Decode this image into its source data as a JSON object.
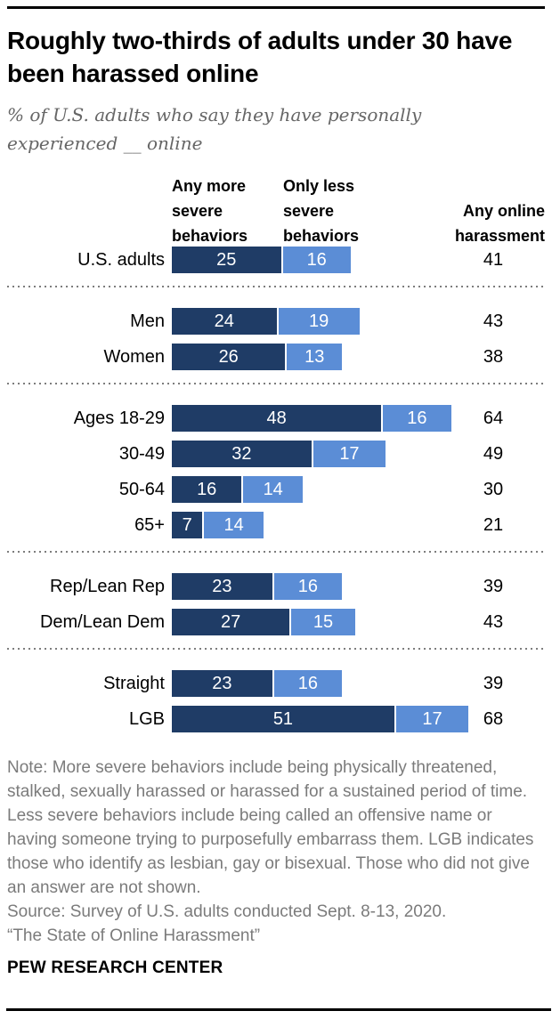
{
  "title": "Roughly two-thirds of adults under 30 have been harassed online",
  "subtitle": "% of U.S. adults who say they have personally experienced __ online",
  "chart_data": {
    "type": "bar",
    "orientation": "horizontal",
    "stacked": true,
    "unit": "percent",
    "xlim": [
      0,
      100
    ],
    "grid": false,
    "series_labels": [
      "Any more severe behaviors",
      "Only less severe behaviors"
    ],
    "total_label": "Any online harassment",
    "colors": {
      "more_severe": "#1F3C66",
      "less_severe": "#5B8DD6",
      "bar_text": "#ffffff"
    },
    "groups": [
      {
        "rows": [
          {
            "label": "U.S. adults",
            "more_severe": 25,
            "less_severe": 16,
            "total": 41
          }
        ]
      },
      {
        "rows": [
          {
            "label": "Men",
            "more_severe": 24,
            "less_severe": 19,
            "total": 43
          },
          {
            "label": "Women",
            "more_severe": 26,
            "less_severe": 13,
            "total": 38
          }
        ]
      },
      {
        "rows": [
          {
            "label": "Ages 18-29",
            "more_severe": 48,
            "less_severe": 16,
            "total": 64
          },
          {
            "label": "30-49",
            "more_severe": 32,
            "less_severe": 17,
            "total": 49
          },
          {
            "label": "50-64",
            "more_severe": 16,
            "less_severe": 14,
            "total": 30
          },
          {
            "label": "65+",
            "more_severe": 7,
            "less_severe": 14,
            "total": 21
          }
        ]
      },
      {
        "rows": [
          {
            "label": "Rep/Lean Rep",
            "more_severe": 23,
            "less_severe": 16,
            "total": 39
          },
          {
            "label": "Dem/Lean Dem",
            "more_severe": 27,
            "less_severe": 15,
            "total": 43
          }
        ]
      },
      {
        "rows": [
          {
            "label": "Straight",
            "more_severe": 23,
            "less_severe": 16,
            "total": 39
          },
          {
            "label": "LGB",
            "more_severe": 51,
            "less_severe": 17,
            "total": 68
          }
        ]
      }
    ]
  },
  "note": "Note: More severe behaviors include being physically threatened, stalked, sexually harassed or harassed for a sustained period of time. Less severe behaviors include being called an offensive name or having someone trying to purposefully embarrass them. LGB indicates those who identify as lesbian, gay or bisexual. Those who did not give an answer are not shown.",
  "source": "Source: Survey of U.S. adults conducted Sept. 8-13, 2020.",
  "report_title": "“The State of Online Harassment”",
  "brand": "PEW RESEARCH CENTER"
}
